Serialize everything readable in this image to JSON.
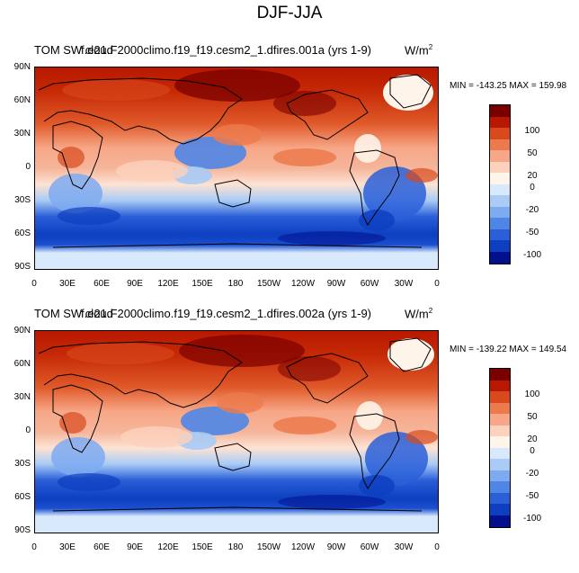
{
  "title": "DJF-JJA",
  "panels": [
    {
      "variable": "TOM SW cloud",
      "case": "f.e21.F2000climo.f19_f19.cesm2_1.dfires.001a (yrs 1-9)",
      "units": "W/m",
      "units_sup": "2",
      "minmax": "MIN = -143.25 MAX = 159.98"
    },
    {
      "variable": "TOM SW cloud",
      "case": "f.e21.F2000climo.f19_f19.cesm2_1.dfires.002a (yrs 1-9)",
      "units": "W/m",
      "units_sup": "2",
      "minmax": "MIN = -139.22 MAX = 149.54"
    }
  ],
  "lat_ticks": [
    "90N",
    "60N",
    "30N",
    "0",
    "30S",
    "60S",
    "90S"
  ],
  "lon_ticks": [
    "0",
    "30E",
    "60E",
    "90E",
    "120E",
    "150E",
    "180",
    "150W",
    "120W",
    "90W",
    "60W",
    "30W",
    "0"
  ],
  "colorbar": {
    "labels": [
      "100",
      "50",
      "20",
      "0",
      "-20",
      "-50",
      "-100"
    ],
    "colors": [
      "#7a0000",
      "#b81800",
      "#d84a1c",
      "#ec7a4c",
      "#f7a787",
      "#fcd2bd",
      "#fff4ea",
      "#d8e9fb",
      "#a9cbf6",
      "#7eaaf0",
      "#4f86e6",
      "#2a5fd8",
      "#0d3fc0",
      "#02108e"
    ]
  }
}
